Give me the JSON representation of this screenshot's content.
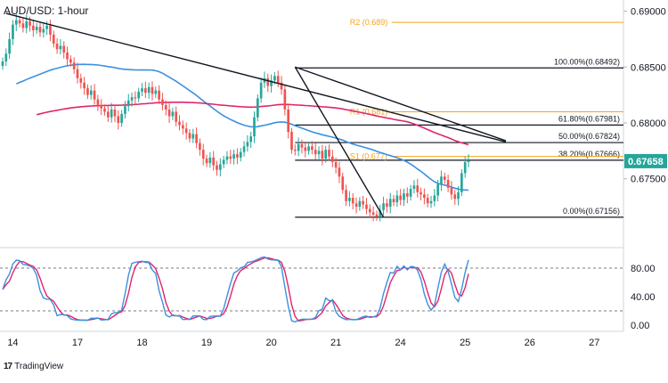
{
  "chart_data": {
    "type": "candlestick",
    "title": "AUD/USD: 1-hour",
    "price_axis": {
      "range": [
        0.669,
        0.691
      ],
      "ticks": [
        {
          "value": 0.69,
          "label": "0.69000"
        },
        {
          "value": 0.685,
          "label": "0.68500"
        },
        {
          "value": 0.68,
          "label": "0.68000"
        },
        {
          "value": 0.675,
          "label": "0.67500"
        }
      ],
      "current_price": {
        "value": 0.67658,
        "label": "0.67658",
        "color": "#26a69a"
      }
    },
    "time_axis": {
      "range": [
        0,
        148
      ],
      "ticks": [
        {
          "t": 3,
          "label": "14"
        },
        {
          "t": 22,
          "label": "17"
        },
        {
          "t": 41,
          "label": "18"
        },
        {
          "t": 60,
          "label": "19"
        },
        {
          "t": 79,
          "label": "20"
        },
        {
          "t": 98,
          "label": "21"
        },
        {
          "t": 117,
          "label": "24"
        },
        {
          "t": 136,
          "label": "25"
        },
        {
          "t": 155,
          "label": "26"
        },
        {
          "t": 174,
          "label": "27"
        }
      ]
    },
    "candle_close": [
      0.6855,
      0.6862,
      0.6875,
      0.6888,
      0.6892,
      0.6889,
      0.6885,
      0.6891,
      0.6887,
      0.6883,
      0.6886,
      0.6881,
      0.6884,
      0.6887,
      0.6879,
      0.6871,
      0.6866,
      0.6869,
      0.6863,
      0.6857,
      0.6854,
      0.6848,
      0.684,
      0.6836,
      0.6831,
      0.6825,
      0.6829,
      0.6821,
      0.6816,
      0.6813,
      0.681,
      0.6805,
      0.6812,
      0.6806,
      0.68,
      0.6808,
      0.6815,
      0.682,
      0.6823,
      0.6822,
      0.6828,
      0.6831,
      0.6827,
      0.6832,
      0.6826,
      0.6829,
      0.6821,
      0.6816,
      0.6812,
      0.6806,
      0.681,
      0.6801,
      0.6798,
      0.6795,
      0.6791,
      0.6786,
      0.679,
      0.6782,
      0.6776,
      0.6768,
      0.6764,
      0.6769,
      0.6762,
      0.6758,
      0.6763,
      0.6767,
      0.677,
      0.6768,
      0.6772,
      0.6769,
      0.6774,
      0.6779,
      0.6783,
      0.6788,
      0.6805,
      0.6822,
      0.6836,
      0.684,
      0.6833,
      0.6838,
      0.6842,
      0.6836,
      0.683,
      0.6812,
      0.6792,
      0.6776,
      0.6775,
      0.6781,
      0.6778,
      0.6775,
      0.6779,
      0.6776,
      0.6772,
      0.6775,
      0.6768,
      0.6776,
      0.677,
      0.6765,
      0.676,
      0.6752,
      0.674,
      0.673,
      0.6733,
      0.6728,
      0.6725,
      0.673,
      0.6727,
      0.6723,
      0.672,
      0.6718,
      0.6716,
      0.6722,
      0.6728,
      0.6725,
      0.6732,
      0.6729,
      0.6735,
      0.6731,
      0.6737,
      0.6734,
      0.6741,
      0.6744,
      0.6738,
      0.6736,
      0.6733,
      0.6728,
      0.673,
      0.6735,
      0.6745,
      0.6752,
      0.6749,
      0.6742,
      0.6736,
      0.6732,
      0.6738,
      0.6755,
      0.6765,
      0.6766
    ],
    "indicators": [
      {
        "kind": "moving-average",
        "color": "#3d8fe0"
      },
      {
        "kind": "moving-average",
        "color": "#e0256b"
      }
    ],
    "oscillator": {
      "type": "stochastic",
      "range": [
        0,
        100
      ],
      "ticks": [
        {
          "value": 80,
          "label": "80.00"
        },
        {
          "value": 40,
          "label": "40.00"
        },
        {
          "value": 0,
          "label": "0.00"
        }
      ],
      "bands": [
        80,
        20
      ],
      "k_color": "#3d8fe0",
      "d_color": "#e0256b"
    },
    "levels": [
      {
        "value": 0.689,
        "label": "R2 (0.689)",
        "color": "#f7a21b",
        "t_start": 100
      },
      {
        "value": 0.681,
        "label": "R1 (0.681)",
        "color": "#f7a21b",
        "t_start": 100
      },
      {
        "value": 0.677,
        "label": "S1 (0.677)",
        "color": "#f7a21b",
        "t_start": 100
      }
    ],
    "fibonacci": {
      "color": "#131722",
      "t_start": 86,
      "levels": [
        {
          "value": 0.68492,
          "label": "100.00%(0.68492)"
        },
        {
          "value": 0.67981,
          "label": "61.80%(0.67981)"
        },
        {
          "value": 0.67824,
          "label": "50.00%(0.67824)"
        },
        {
          "value": 0.67666,
          "label": "38.20%(0.67666)"
        },
        {
          "value": 0.67156,
          "label": "0.00%(0.67156)"
        }
      ]
    },
    "trendlines": [
      {
        "from": [
          1,
          0.6898
        ],
        "to": [
          148,
          0.6783
        ]
      },
      {
        "from": [
          86,
          0.685
        ],
        "to": [
          148,
          0.6784
        ]
      },
      {
        "from": [
          86,
          0.685
        ],
        "to": [
          112,
          0.67156
        ]
      }
    ]
  },
  "watermark": {
    "logo": "17",
    "text": "TradingView"
  }
}
